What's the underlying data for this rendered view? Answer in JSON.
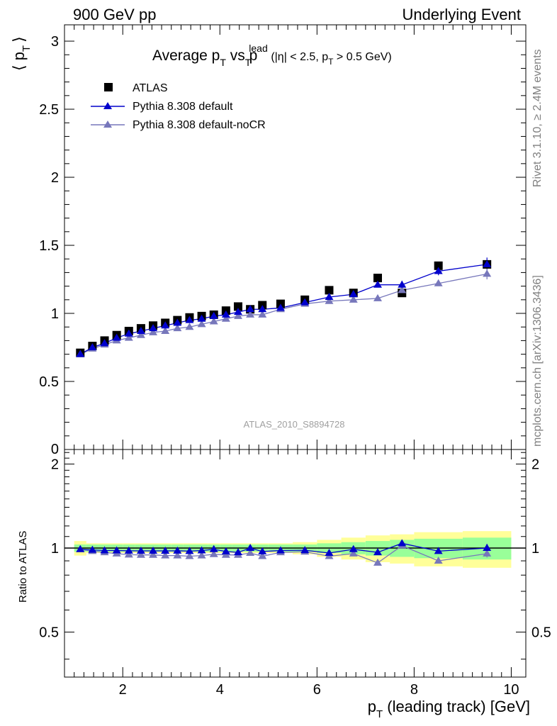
{
  "header": {
    "left": "900 GeV pp",
    "right": "Underlying Event"
  },
  "side": {
    "rivet": "Rivet 3.1.10, ≥ 2.4M events",
    "mcplots": "mcplots.cern.ch [arXiv:1306.3436]"
  },
  "main": {
    "title_main": "Average p",
    "title_sub1": "T",
    "title_vs": " vs p",
    "title_sup": "lead",
    "title_sub2": "T",
    "title_paren": "(|η| < 2.5, p",
    "title_paren_sub": "T",
    "title_paren_end": " > 0.5 GeV)",
    "ylabel": "⟨ p",
    "ylabel_sub": "T",
    "ylabel_end": "⟩",
    "watermark": "ATLAS_2010_S8894728"
  },
  "ratio": {
    "ylabel": "Ratio to ATLAS"
  },
  "xaxis": {
    "label": "p",
    "label_sub": "T",
    "label_end": " (leading track) [GeV]"
  },
  "colors": {
    "data": "#000000",
    "default": "#0000cc",
    "nocr": "#7777bb",
    "band_inner": "#99ff99",
    "band_outer": "#ffff99"
  },
  "chart_data": [
    {
      "type": "scatter",
      "panel": "main",
      "xlim": [
        0.8,
        10.3
      ],
      "ylim": [
        0,
        3.12
      ],
      "yticks": [
        "0.5",
        "1",
        "1.5",
        "2",
        "2.5",
        "3"
      ],
      "ytick_values": [
        0.5,
        1,
        1.5,
        2,
        2.5,
        3
      ],
      "ytick_zero": "0",
      "xticks": [
        "2",
        "4",
        "6",
        "8",
        "10"
      ],
      "xtick_values": [
        2,
        4,
        6,
        8,
        10
      ],
      "legend_position": "top-left",
      "series": [
        {
          "name": "ATLAS",
          "marker": "square",
          "x": [
            1.125,
            1.375,
            1.625,
            1.875,
            2.125,
            2.375,
            2.625,
            2.875,
            3.125,
            3.375,
            3.625,
            3.875,
            4.125,
            4.375,
            4.625,
            4.875,
            5.25,
            5.75,
            6.25,
            6.75,
            7.25,
            7.75,
            8.5,
            9.5
          ],
          "y": [
            0.71,
            0.76,
            0.8,
            0.84,
            0.87,
            0.89,
            0.91,
            0.93,
            0.95,
            0.97,
            0.98,
            0.99,
            1.02,
            1.05,
            1.03,
            1.06,
            1.07,
            1.1,
            1.17,
            1.15,
            1.26,
            1.15,
            1.35,
            1.36
          ]
        },
        {
          "name": "Pythia 8.308 default",
          "marker": "triangle",
          "x": [
            1.125,
            1.375,
            1.625,
            1.875,
            2.125,
            2.375,
            2.625,
            2.875,
            3.125,
            3.375,
            3.625,
            3.875,
            4.125,
            4.375,
            4.625,
            4.875,
            5.25,
            5.75,
            6.25,
            6.75,
            7.25,
            7.75,
            8.5,
            9.5
          ],
          "y": [
            0.7,
            0.75,
            0.78,
            0.82,
            0.85,
            0.87,
            0.89,
            0.91,
            0.93,
            0.95,
            0.96,
            0.98,
            0.99,
            1.01,
            1.03,
            1.03,
            1.04,
            1.08,
            1.12,
            1.14,
            1.21,
            1.21,
            1.31,
            1.36
          ]
        },
        {
          "name": "Pythia 8.308 default-noCR",
          "marker": "triangle",
          "x": [
            1.125,
            1.375,
            1.625,
            1.875,
            2.125,
            2.375,
            2.625,
            2.875,
            3.125,
            3.375,
            3.625,
            3.875,
            4.125,
            4.375,
            4.625,
            4.875,
            5.25,
            5.75,
            6.25,
            6.75,
            7.25,
            7.75,
            8.5,
            9.5
          ],
          "y": [
            0.7,
            0.74,
            0.77,
            0.8,
            0.82,
            0.84,
            0.86,
            0.87,
            0.89,
            0.9,
            0.92,
            0.94,
            0.96,
            0.98,
            0.99,
            0.99,
            1.03,
            1.07,
            1.09,
            1.1,
            1.11,
            1.17,
            1.22,
            1.29
          ]
        }
      ]
    },
    {
      "type": "line",
      "panel": "ratio",
      "ylabel": "Ratio to ATLAS",
      "xlim": [
        0.8,
        10.3
      ],
      "ylim": [
        0.345,
        2.255
      ],
      "yticks": [
        "0.5",
        "1",
        "2"
      ],
      "ytick_values": [
        0.5,
        1,
        2
      ],
      "xticks": [
        "2",
        "4",
        "6",
        "8",
        "10"
      ],
      "xtick_values": [
        2,
        4,
        6,
        8,
        10
      ],
      "bands": {
        "edges": [
          1.0,
          1.25,
          1.5,
          1.75,
          2.0,
          2.25,
          2.5,
          2.75,
          3.0,
          3.25,
          3.5,
          3.75,
          4.0,
          4.25,
          4.5,
          4.75,
          5.0,
          5.5,
          6.0,
          6.5,
          7.0,
          7.5,
          8.0,
          9.0,
          10.0
        ],
        "inner": [
          0.03,
          0.03,
          0.03,
          0.03,
          0.03,
          0.03,
          0.03,
          0.03,
          0.03,
          0.03,
          0.03,
          0.03,
          0.03,
          0.03,
          0.03,
          0.03,
          0.03,
          0.03,
          0.04,
          0.05,
          0.06,
          0.07,
          0.08,
          0.09
        ],
        "outer": [
          0.06,
          0.04,
          0.04,
          0.04,
          0.04,
          0.04,
          0.04,
          0.04,
          0.04,
          0.04,
          0.04,
          0.04,
          0.04,
          0.04,
          0.04,
          0.04,
          0.04,
          0.05,
          0.07,
          0.09,
          0.11,
          0.12,
          0.14,
          0.15
        ]
      },
      "series": [
        {
          "name": "Pythia 8.308 default",
          "x": [
            1.125,
            1.375,
            1.625,
            1.875,
            2.125,
            2.375,
            2.625,
            2.875,
            3.125,
            3.375,
            3.625,
            3.875,
            4.125,
            4.375,
            4.625,
            4.875,
            5.25,
            5.75,
            6.25,
            6.75,
            7.25,
            7.75,
            8.5,
            9.5
          ],
          "y": [
            0.99,
            0.985,
            0.98,
            0.98,
            0.978,
            0.977,
            0.977,
            0.977,
            0.978,
            0.975,
            0.98,
            0.99,
            0.972,
            0.965,
            1.0,
            0.972,
            0.98,
            0.982,
            0.96,
            0.99,
            0.965,
            1.04,
            0.975,
            1.0
          ]
        },
        {
          "name": "Pythia 8.308 default-noCR",
          "x": [
            1.125,
            1.375,
            1.625,
            1.875,
            2.125,
            2.375,
            2.625,
            2.875,
            3.125,
            3.375,
            3.625,
            3.875,
            4.125,
            4.375,
            4.625,
            4.875,
            5.25,
            5.75,
            6.25,
            6.75,
            7.25,
            7.75,
            8.5,
            9.5
          ],
          "y": [
            0.99,
            0.975,
            0.965,
            0.955,
            0.947,
            0.945,
            0.945,
            0.94,
            0.94,
            0.935,
            0.94,
            0.95,
            0.945,
            0.945,
            0.96,
            0.935,
            0.965,
            0.97,
            0.935,
            0.955,
            0.885,
            1.02,
            0.9,
            0.955
          ]
        }
      ]
    }
  ]
}
